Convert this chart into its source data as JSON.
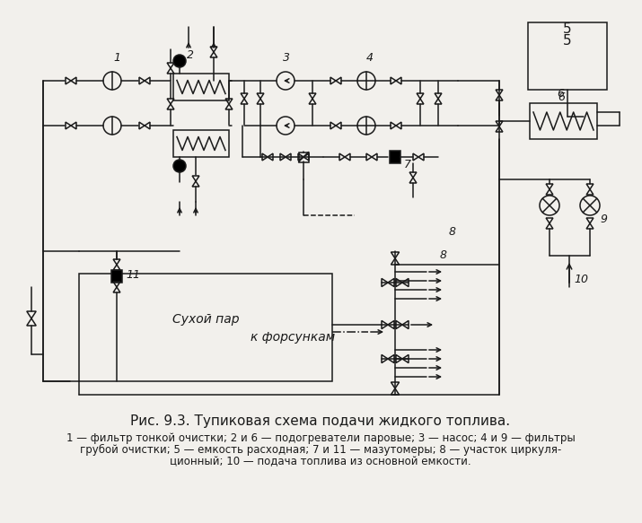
{
  "title": "Рис. 9.3. Тупиковая схема подачи жидкого топлива.",
  "caption_lines": [
    "1 — фильтр тонкой очистки; 2 и 6 — подогреватели паровые; 3 — насос; 4 и 9 — фильтры",
    "грубой очистки; 5 — емкость расходная; 7 и 11 — мазутомеры; 8 — участок циркуля-",
    "ционный; 10 — подача топлива из основной емкости."
  ],
  "bg_color": "#f2f0ec",
  "line_color": "#1a1a1a"
}
